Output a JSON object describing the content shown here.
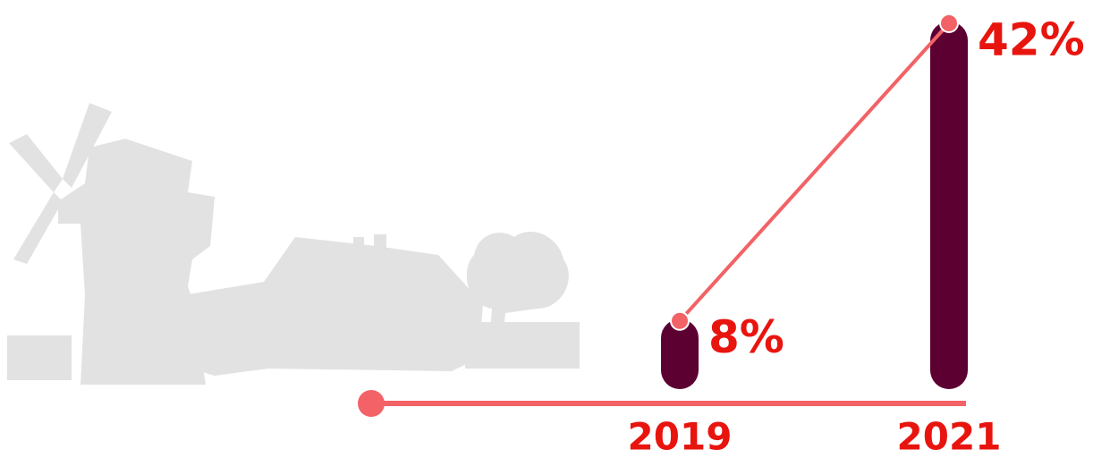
{
  "chart_data": {
    "type": "bar",
    "categories": [
      "2019",
      "2021"
    ],
    "values": [
      8,
      42
    ],
    "value_labels": [
      "8%",
      "42%"
    ],
    "color": "#5c0032",
    "line_color": "#f26266"
  }
}
